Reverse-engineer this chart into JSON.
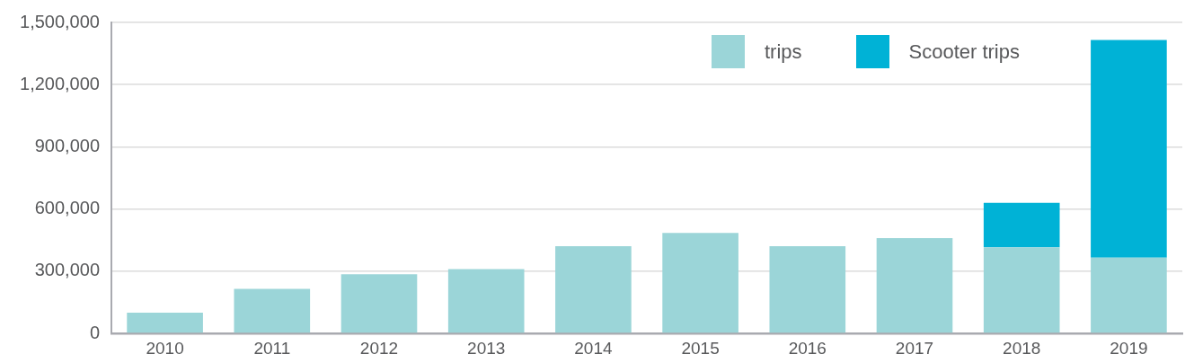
{
  "chart_data": {
    "type": "bar",
    "stacked": true,
    "categories": [
      "2010",
      "2011",
      "2012",
      "2013",
      "2014",
      "2015",
      "2016",
      "2017",
      "2018",
      "2019"
    ],
    "series": [
      {
        "name": "trips",
        "color": "#9bd5d8",
        "values": [
          100000,
          215000,
          285000,
          310000,
          420000,
          485000,
          420000,
          460000,
          415000,
          365000
        ]
      },
      {
        "name": "Scooter trips",
        "color": "#00b2d6",
        "values": [
          null,
          null,
          null,
          null,
          null,
          null,
          null,
          null,
          215000,
          1050000
        ]
      }
    ],
    "ylim": [
      0,
      1500000
    ],
    "yticks": [
      {
        "value": 0,
        "label": "0"
      },
      {
        "value": 300000,
        "label": "300,000"
      },
      {
        "value": 600000,
        "label": "600,000"
      },
      {
        "value": 900000,
        "label": "900,000"
      },
      {
        "value": 1200000,
        "label": "1,200,000"
      },
      {
        "value": 1500000,
        "label": "1,500,000"
      }
    ],
    "grid": "y",
    "legend": "top right"
  }
}
